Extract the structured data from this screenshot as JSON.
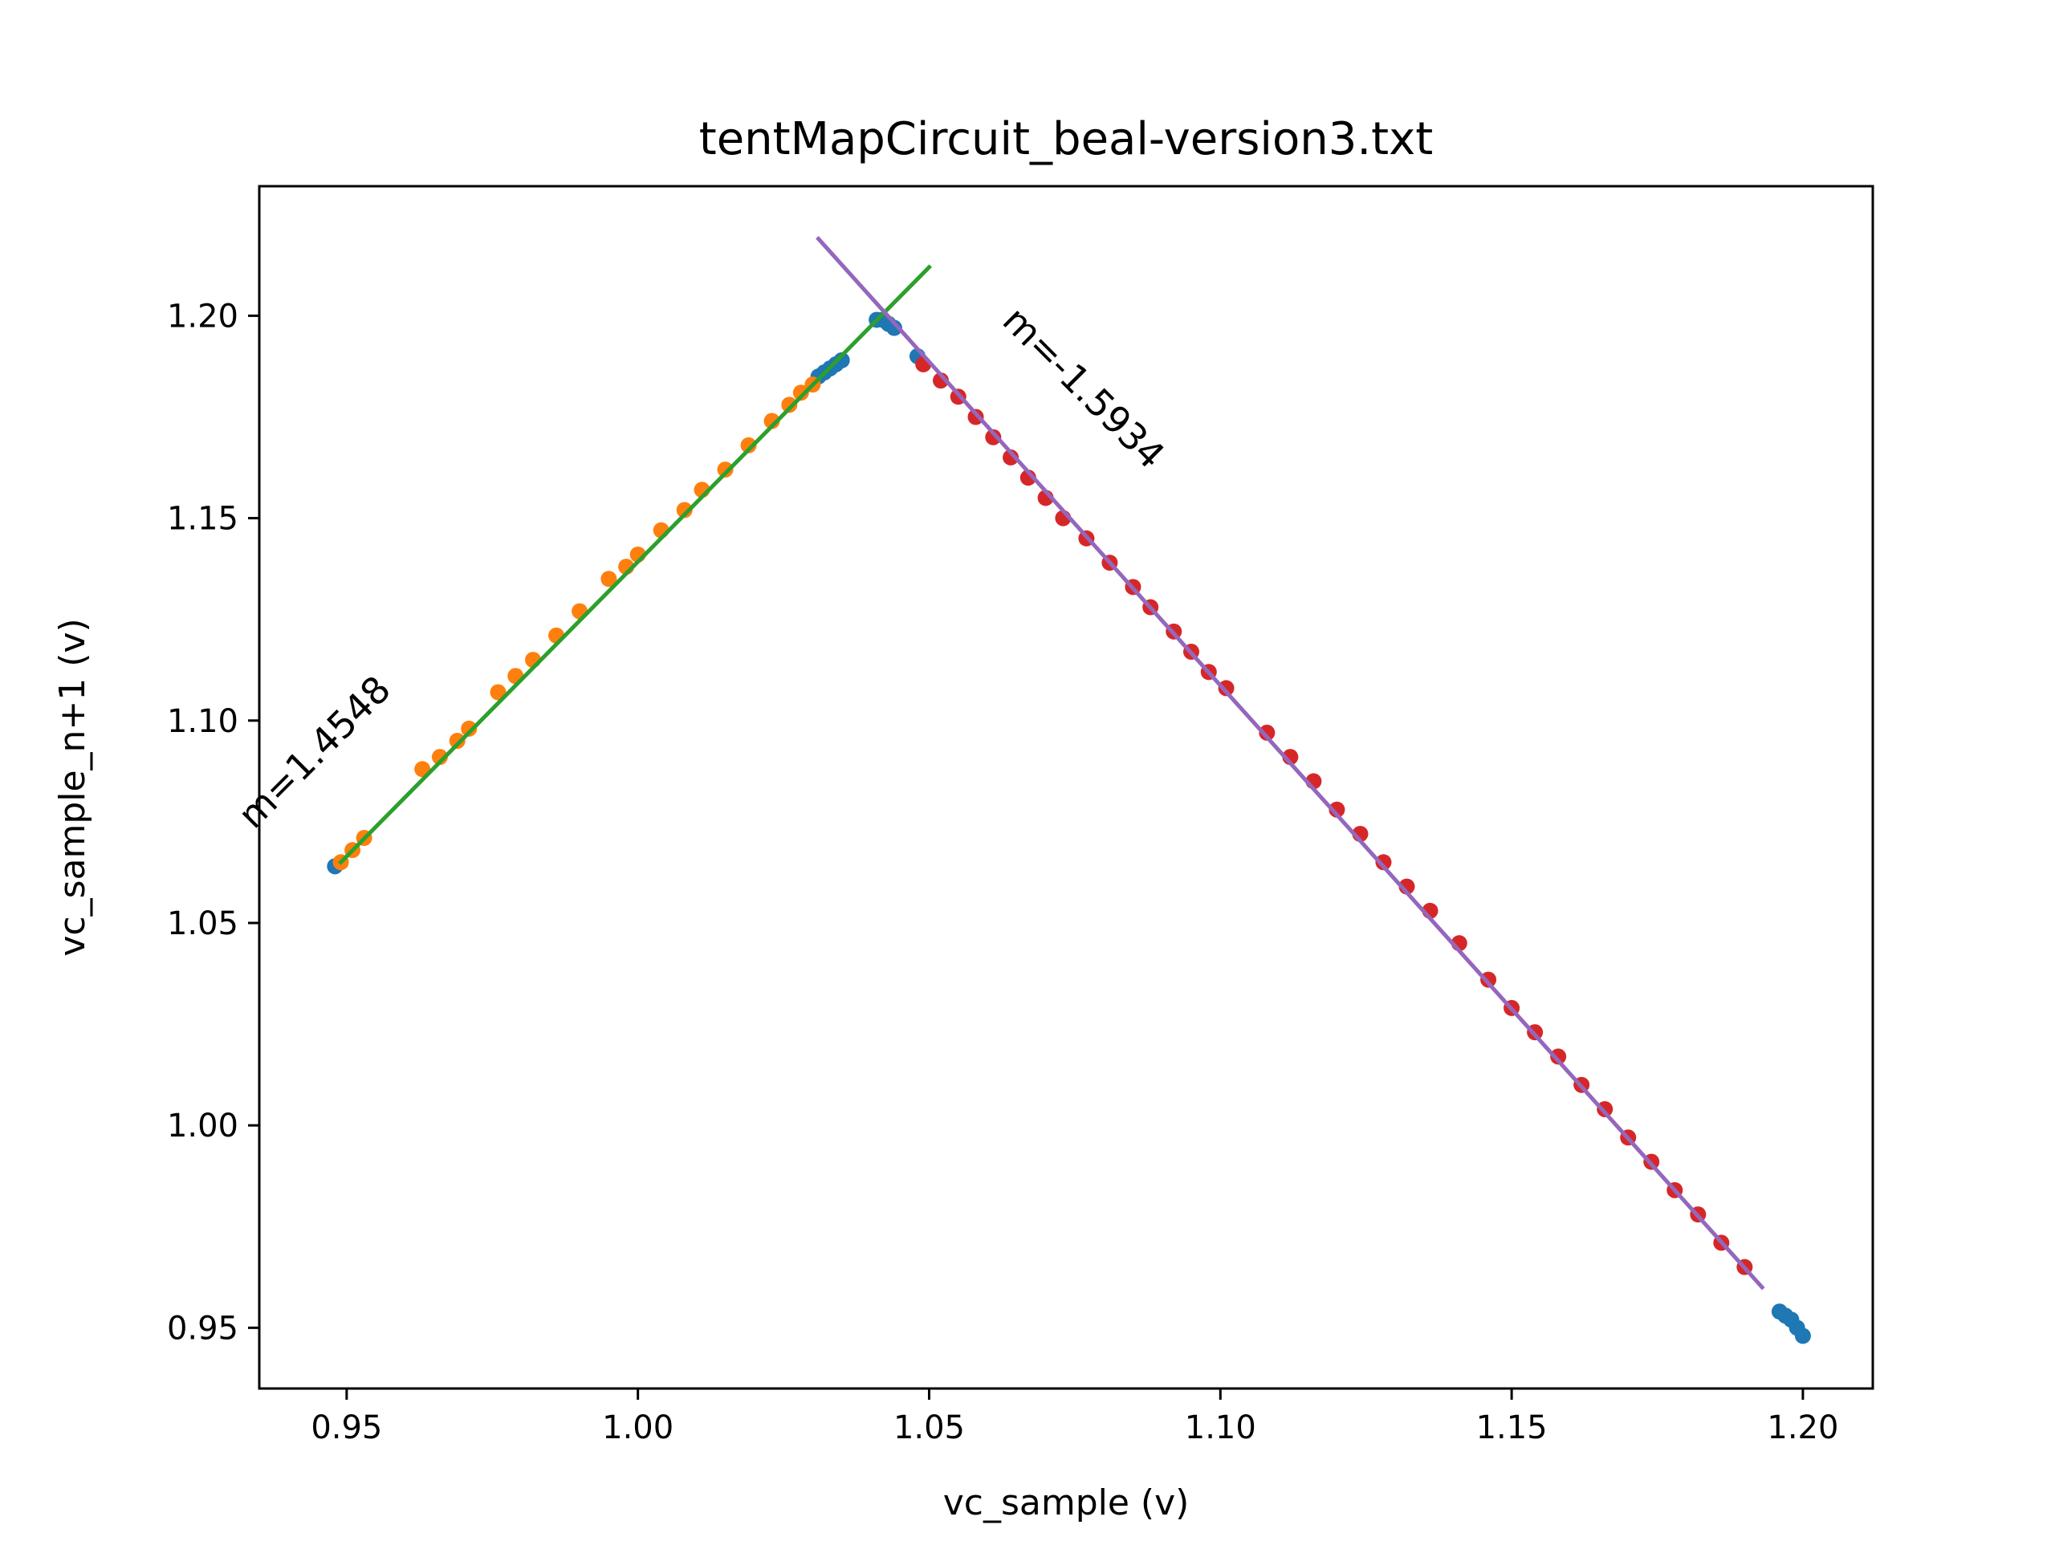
{
  "chart_data": {
    "type": "scatter",
    "title": "tentMapCircuit_beal-version3.txt",
    "xlabel": "vc_sample (v)",
    "ylabel": "vc_sample_n+1 (v)",
    "xlim": [
      0.935,
      1.212
    ],
    "ylim": [
      0.935,
      1.232
    ],
    "x_ticks": [
      0.95,
      1.0,
      1.05,
      1.1,
      1.15,
      1.2
    ],
    "x_tick_labels": [
      "0.95",
      "1.00",
      "1.05",
      "1.10",
      "1.15",
      "1.20"
    ],
    "y_ticks": [
      0.95,
      1.0,
      1.05,
      1.1,
      1.15,
      1.2
    ],
    "y_tick_labels": [
      "0.95",
      "1.00",
      "1.05",
      "1.10",
      "1.15",
      "1.20"
    ],
    "grid": false,
    "legend": "none",
    "series": [
      {
        "kind": "points",
        "color": "#1f77b4",
        "points": [
          [
            0.948,
            1.064
          ],
          [
            1.031,
            1.185
          ],
          [
            1.032,
            1.186
          ],
          [
            1.033,
            1.187
          ],
          [
            1.034,
            1.188
          ],
          [
            1.035,
            1.189
          ],
          [
            1.041,
            1.199
          ],
          [
            1.042,
            1.199
          ],
          [
            1.043,
            1.198
          ],
          [
            1.044,
            1.197
          ],
          [
            1.048,
            1.19
          ],
          [
            1.196,
            0.954
          ],
          [
            1.197,
            0.953
          ],
          [
            1.198,
            0.952
          ],
          [
            1.199,
            0.95
          ],
          [
            1.2,
            0.948
          ]
        ]
      },
      {
        "kind": "points",
        "color": "#ff7f0e",
        "points": [
          [
            0.949,
            1.065
          ],
          [
            0.951,
            1.068
          ],
          [
            0.953,
            1.071
          ],
          [
            0.963,
            1.088
          ],
          [
            0.966,
            1.091
          ],
          [
            0.969,
            1.095
          ],
          [
            0.971,
            1.098
          ],
          [
            0.976,
            1.107
          ],
          [
            0.979,
            1.111
          ],
          [
            0.982,
            1.115
          ],
          [
            0.986,
            1.121
          ],
          [
            0.99,
            1.127
          ],
          [
            0.995,
            1.135
          ],
          [
            0.998,
            1.138
          ],
          [
            1.0,
            1.141
          ],
          [
            1.004,
            1.147
          ],
          [
            1.008,
            1.152
          ],
          [
            1.011,
            1.157
          ],
          [
            1.015,
            1.162
          ],
          [
            1.019,
            1.168
          ],
          [
            1.023,
            1.174
          ],
          [
            1.026,
            1.178
          ],
          [
            1.028,
            1.181
          ],
          [
            1.03,
            1.183
          ]
        ]
      },
      {
        "kind": "points",
        "color": "#d62728",
        "points": [
          [
            1.049,
            1.188
          ],
          [
            1.052,
            1.184
          ],
          [
            1.055,
            1.18
          ],
          [
            1.058,
            1.175
          ],
          [
            1.061,
            1.17
          ],
          [
            1.064,
            1.165
          ],
          [
            1.067,
            1.16
          ],
          [
            1.07,
            1.155
          ],
          [
            1.073,
            1.15
          ],
          [
            1.077,
            1.145
          ],
          [
            1.081,
            1.139
          ],
          [
            1.085,
            1.133
          ],
          [
            1.088,
            1.128
          ],
          [
            1.092,
            1.122
          ],
          [
            1.095,
            1.117
          ],
          [
            1.098,
            1.112
          ],
          [
            1.101,
            1.108
          ],
          [
            1.108,
            1.097
          ],
          [
            1.112,
            1.091
          ],
          [
            1.116,
            1.085
          ],
          [
            1.12,
            1.078
          ],
          [
            1.124,
            1.072
          ],
          [
            1.128,
            1.065
          ],
          [
            1.132,
            1.059
          ],
          [
            1.136,
            1.053
          ],
          [
            1.141,
            1.045
          ],
          [
            1.146,
            1.036
          ],
          [
            1.15,
            1.029
          ],
          [
            1.154,
            1.023
          ],
          [
            1.158,
            1.017
          ],
          [
            1.162,
            1.01
          ],
          [
            1.166,
            1.004
          ],
          [
            1.17,
            0.997
          ],
          [
            1.174,
            0.991
          ],
          [
            1.178,
            0.984
          ],
          [
            1.182,
            0.978
          ],
          [
            1.186,
            0.971
          ],
          [
            1.19,
            0.965
          ]
        ]
      },
      {
        "kind": "line",
        "color": "#2ca02c",
        "points": [
          [
            0.949,
            1.065
          ],
          [
            1.05,
            1.212
          ]
        ]
      },
      {
        "kind": "line",
        "color": "#9467bd",
        "points": [
          [
            1.031,
            1.219
          ],
          [
            1.193,
            0.96
          ]
        ]
      }
    ],
    "annotations": [
      {
        "text": "m=1.4548",
        "x": 0.946,
        "y": 1.09,
        "rotation": -45
      },
      {
        "text": "m=-1.5934",
        "x": 1.075,
        "y": 1.18,
        "rotation": 45
      }
    ]
  }
}
